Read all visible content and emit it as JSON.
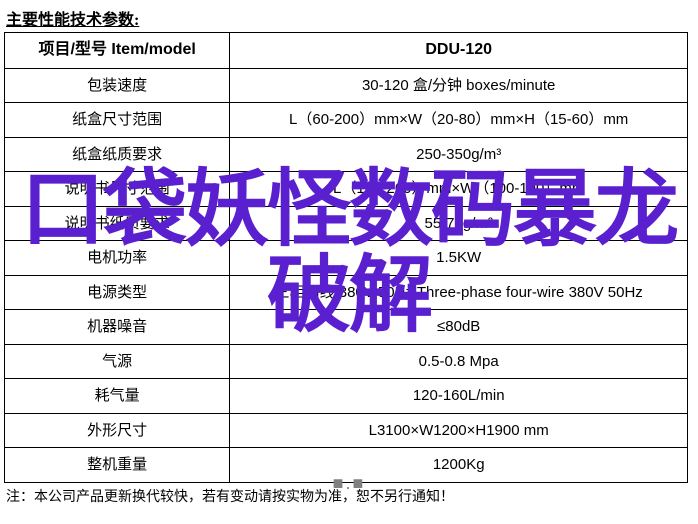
{
  "section_title": "主要性能技术参数:",
  "table": {
    "header": {
      "left": "项目/型号 Item/model",
      "right": "DDU-120"
    },
    "rows": [
      {
        "label": "包装速度",
        "value": "30-120 盒/分钟 boxes/minute"
      },
      {
        "label": "纸盒尺寸范围",
        "value": "L（60-200）mm×W（20-80）mm×H（15-60）mm"
      },
      {
        "label": "纸盒纸质要求",
        "value": "250-350g/m³"
      },
      {
        "label": "说明书尺寸范围",
        "value": "L（100-260）mm×W（100-190）mm"
      },
      {
        "label": "说明书纸质要求",
        "value": "55-70g/m²"
      },
      {
        "label": "电机功率",
        "value": "1.5KW"
      },
      {
        "label": "电源类型",
        "value": "三相四线 380V 50Hz Three-phase four-wire 380V 50Hz"
      },
      {
        "label": "机器噪音",
        "value": "≤80dB"
      },
      {
        "label": "气源",
        "value": "0.5-0.8 Mpa"
      },
      {
        "label": "耗气量",
        "value": "120-160L/min"
      },
      {
        "label": "外形尺寸",
        "value": "L3100×W1200×H1900 mm"
      },
      {
        "label": "整机重量",
        "value": "1200Kg"
      }
    ]
  },
  "footnote": "注：本公司产品更新换代较快，若有变动请按实物为准，恕不另行通知！",
  "overlay": {
    "line1": "口袋妖怪数码暴龙",
    "line2": "破解",
    "color": "#5a1fcf",
    "fontsize": 84,
    "weight": 900
  },
  "footer_mark": "■.■"
}
